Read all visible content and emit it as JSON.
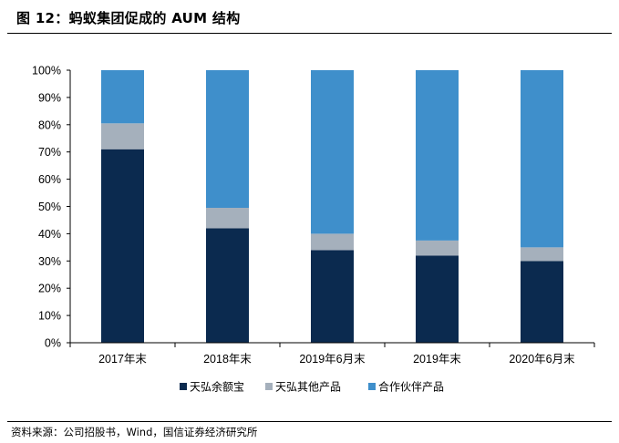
{
  "figure": {
    "title": "图 12：蚂蚁集团促成的 AUM 结构",
    "source": "资料来源：公司招股书，Wind，国信证券经济研究所"
  },
  "chart_data": {
    "type": "bar",
    "stacked": true,
    "percent": true,
    "categories": [
      "2017年末",
      "2018年末",
      "2019年6月末",
      "2019年末",
      "2020年6月末"
    ],
    "series": [
      {
        "name": "天弘余额宝",
        "color": "#0b2a4f",
        "values": [
          71,
          42,
          34,
          32,
          30
        ]
      },
      {
        "name": "天弘其他产品",
        "color": "#a5b0bc",
        "values": [
          9.5,
          7.5,
          6,
          5.5,
          5
        ]
      },
      {
        "name": "合作伙伴产品",
        "color": "#3f8fcb",
        "values": [
          19.5,
          50.5,
          60,
          62.5,
          65
        ]
      }
    ],
    "yticks": [
      "0%",
      "10%",
      "20%",
      "30%",
      "40%",
      "50%",
      "60%",
      "70%",
      "80%",
      "90%",
      "100%"
    ],
    "ylim": [
      0,
      100
    ],
    "grid": false,
    "legend_position": "bottom"
  }
}
